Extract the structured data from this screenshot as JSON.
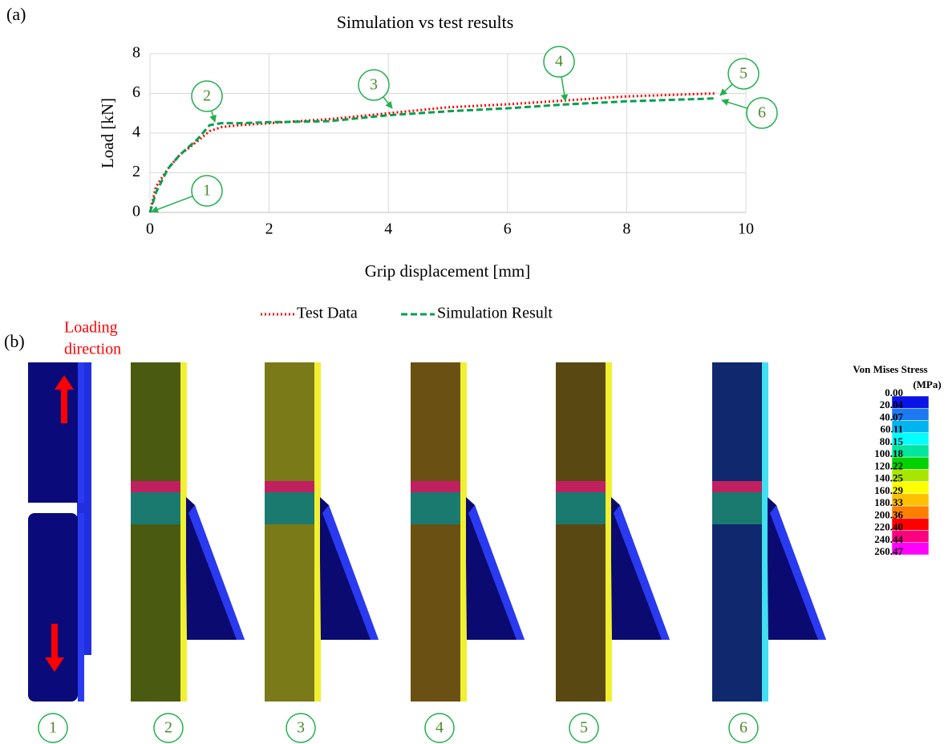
{
  "panel_a_label": "(a)",
  "chart_data": {
    "type": "line",
    "title": "Simulation vs test results",
    "x_label": "Grip displacement [mm]",
    "y_label": "Load [kN]",
    "x": [
      0,
      0.1,
      0.3,
      0.5,
      0.8,
      1.0,
      1.2,
      1.5,
      2,
      3,
      4,
      5,
      6,
      7,
      8,
      9,
      9.5
    ],
    "series": [
      {
        "name": "Test Data",
        "color": "#ff0000",
        "style": "dotted",
        "values": [
          0,
          1.3,
          2.2,
          2.9,
          3.6,
          4.1,
          4.3,
          4.4,
          4.5,
          4.7,
          5.0,
          5.3,
          5.45,
          5.65,
          5.85,
          5.95,
          6.0
        ]
      },
      {
        "name": "Simulation Result",
        "color": "#00a050",
        "style": "dashed",
        "values": [
          0,
          1.0,
          2.2,
          2.9,
          3.7,
          4.4,
          4.5,
          4.5,
          4.55,
          4.6,
          4.9,
          5.1,
          5.25,
          5.45,
          5.6,
          5.7,
          5.75
        ]
      }
    ],
    "xlim": [
      0,
      10
    ],
    "xticks": [
      0,
      2,
      4,
      6,
      8,
      10
    ],
    "ylim": [
      0,
      8
    ],
    "yticks": [
      0,
      2,
      4,
      6,
      8
    ],
    "grid": true,
    "legend": "bottom",
    "annotations": [
      "1",
      "2",
      "3",
      "4",
      "5",
      "6"
    ]
  },
  "panel_b": {
    "label": "(b)",
    "loading_direction": [
      "Loading",
      "direction"
    ],
    "snapshots": [
      "1",
      "2",
      "3",
      "4",
      "5",
      "6"
    ],
    "colorbar": {
      "title": "Von Mises Stress",
      "unit": "(MPa)",
      "ticks": [
        {
          "value": 0,
          "label": "0.00"
        },
        {
          "value": 20.04,
          "label": "20.04"
        },
        {
          "value": 40.07,
          "label": "40.07"
        },
        {
          "value": 60.11,
          "label": "60.11"
        },
        {
          "value": 80.15,
          "label": "80.15"
        },
        {
          "value": 100.18,
          "label": "100.18"
        },
        {
          "value": 120.22,
          "label": "120.22"
        },
        {
          "value": 140.25,
          "label": "140.25"
        },
        {
          "value": 160.29,
          "label": "160.29"
        },
        {
          "value": 180.33,
          "label": "180.33"
        },
        {
          "value": 200.36,
          "label": "200.36"
        },
        {
          "value": 220.4,
          "label": "220.40"
        },
        {
          "value": 240.44,
          "label": "240.44"
        },
        {
          "value": 260.47,
          "label": "260.47"
        }
      ],
      "colors": [
        "#0a14e6",
        "#1e78f0",
        "#00b4f0",
        "#00ffff",
        "#00e6a0",
        "#00d200",
        "#a8e600",
        "#ffff00",
        "#ffc000",
        "#ff8000",
        "#ff0000",
        "#ff0080",
        "#ff00ff"
      ]
    }
  }
}
